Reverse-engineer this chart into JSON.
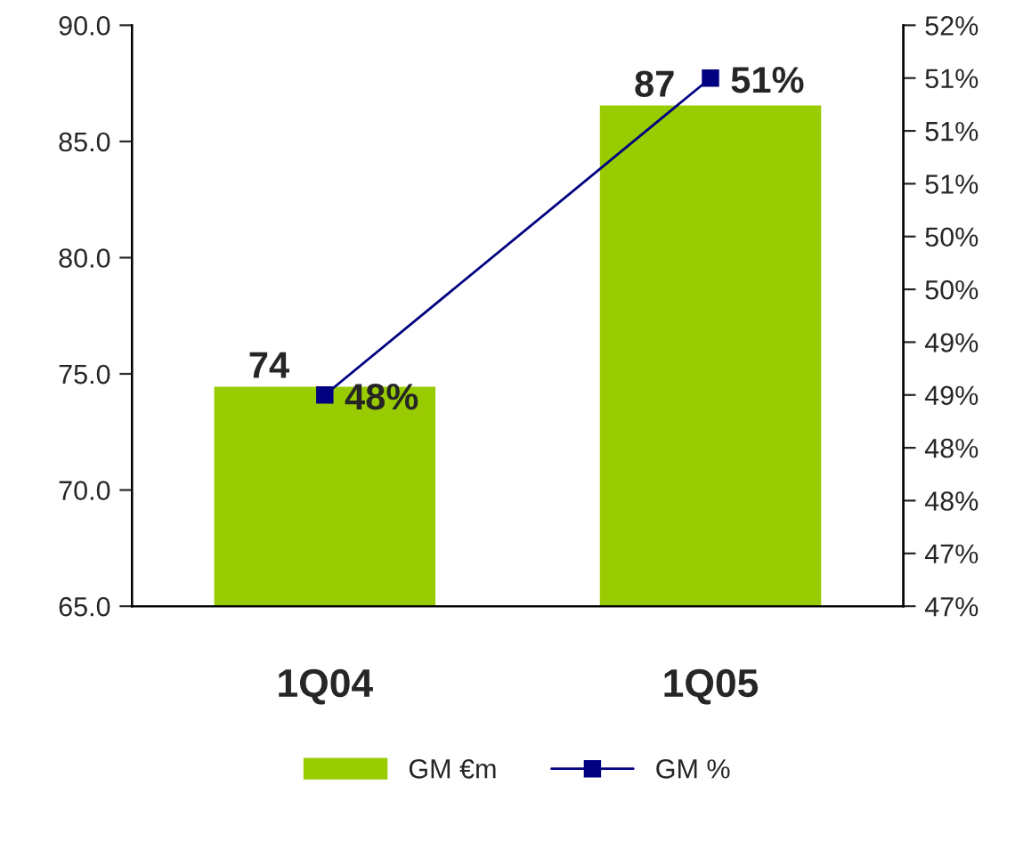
{
  "chart_data": {
    "type": "bar",
    "categories": [
      "1Q04",
      "1Q05"
    ],
    "series": [
      {
        "name": "GM €m",
        "color": "#99cc00",
        "values": [
          74.5,
          86.6
        ],
        "value_labels": [
          "74",
          "87"
        ]
      },
      {
        "name": "GM %",
        "type": "line",
        "axis": "y2",
        "color": "#000080",
        "values": [
          48.5,
          51.5
        ],
        "value_labels": [
          "48%",
          "51%"
        ],
        "marker": "square",
        "line_style": "solid"
      }
    ],
    "ylim": [
      65,
      90
    ],
    "yticks": [
      {
        "value": 65,
        "label": "65.0"
      },
      {
        "value": 70,
        "label": "70.0"
      },
      {
        "value": 75,
        "label": "75.0"
      },
      {
        "value": 80,
        "label": "80.0"
      },
      {
        "value": 85,
        "label": "85.0"
      },
      {
        "value": 90,
        "label": "90.0"
      }
    ],
    "y2lim": [
      46.5,
      52
    ],
    "y2ticks": [
      {
        "value": 46.5,
        "label": "47%"
      },
      {
        "value": 47,
        "label": "47%"
      },
      {
        "value": 47.5,
        "label": "48%"
      },
      {
        "value": 48,
        "label": "48%"
      },
      {
        "value": 48.5,
        "label": "49%"
      },
      {
        "value": 49,
        "label": "49%"
      },
      {
        "value": 49.5,
        "label": "50%"
      },
      {
        "value": 50,
        "label": "50%"
      },
      {
        "value": 50.5,
        "label": "51%"
      },
      {
        "value": 51,
        "label": "51%"
      },
      {
        "value": 51.5,
        "label": "51%"
      },
      {
        "value": 52,
        "label": "52%"
      }
    ],
    "grid": false,
    "legend": "bottom"
  }
}
